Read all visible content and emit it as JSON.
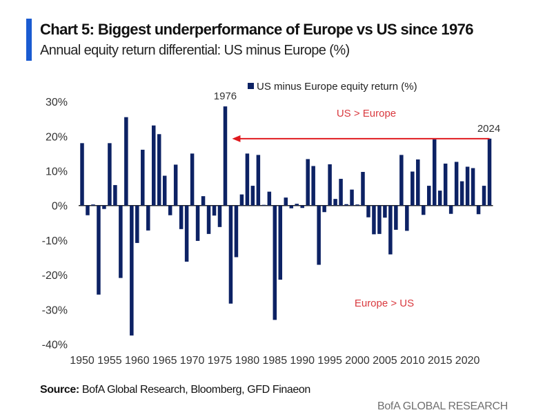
{
  "header": {
    "title": "Chart 5: Biggest underperformance of Europe vs US since 1976",
    "subtitle": "Annual equity return differential: US minus Europe (%)"
  },
  "footer": {
    "source_label": "Source:",
    "source_text": " BofA Global Research, Bloomberg, GFD Finaeon",
    "brand": "BofA GLOBAL RESEARCH"
  },
  "colors": {
    "bar": "#0d2264",
    "arrow": "#e0191e",
    "annotation_text": "#d9393e",
    "accent": "#1a5bd1"
  },
  "chart_data": {
    "type": "bar",
    "title": "Chart 5: Biggest underperformance of Europe vs US since 1976",
    "subtitle": "Annual equity return differential: US minus Europe (%)",
    "xlabel": "",
    "ylabel": "",
    "ylim": [
      -40,
      30
    ],
    "yticks": [
      30,
      20,
      10,
      0,
      -10,
      -20,
      -30,
      -40
    ],
    "ytick_labels": [
      "30%",
      "20%",
      "10%",
      "0%",
      "-10%",
      "-20%",
      "-30%",
      "-40%"
    ],
    "xtick_labels": [
      "1950",
      "1955",
      "1960",
      "1965",
      "1970",
      "1975",
      "1980",
      "1985",
      "1990",
      "1995",
      "2000",
      "2005",
      "2010",
      "2015",
      "2020"
    ],
    "grid": false,
    "legend": {
      "position": "top-center",
      "entries": [
        "US minus Europe equity return (%)"
      ]
    },
    "annotations": [
      {
        "text": "1976",
        "type": "bar-label",
        "year": 1976
      },
      {
        "text": "2024",
        "type": "bar-label",
        "year": 2024
      },
      {
        "text": "US > Europe",
        "type": "region-label"
      },
      {
        "text": "Europe > US",
        "type": "region-label"
      },
      {
        "type": "arrow",
        "from_year": 2024,
        "to_year": 1976,
        "level": 19.3
      }
    ],
    "series": [
      {
        "name": "US minus Europe equity return (%)",
        "x": [
          1950,
          1951,
          1952,
          1953,
          1954,
          1955,
          1956,
          1957,
          1958,
          1959,
          1960,
          1961,
          1962,
          1963,
          1964,
          1965,
          1966,
          1967,
          1968,
          1969,
          1970,
          1971,
          1972,
          1973,
          1974,
          1975,
          1976,
          1977,
          1978,
          1979,
          1980,
          1981,
          1982,
          1983,
          1984,
          1985,
          1986,
          1987,
          1988,
          1989,
          1990,
          1991,
          1992,
          1993,
          1994,
          1995,
          1996,
          1997,
          1998,
          1999,
          2000,
          2001,
          2002,
          2003,
          2004,
          2005,
          2006,
          2007,
          2008,
          2009,
          2010,
          2011,
          2012,
          2013,
          2014,
          2015,
          2016,
          2017,
          2018,
          2019,
          2020,
          2021,
          2022,
          2023,
          2024
        ],
        "values": [
          18.0,
          -2.8,
          0.3,
          -25.7,
          -1.0,
          18.0,
          5.9,
          -20.9,
          25.5,
          -37.5,
          -10.8,
          16.1,
          -7.2,
          23.1,
          20.6,
          8.6,
          -2.8,
          11.8,
          -6.8,
          -16.2,
          15.0,
          -10.2,
          2.7,
          -8.2,
          -2.9,
          -6.2,
          28.6,
          -28.3,
          -14.9,
          3.2,
          15.0,
          5.7,
          14.6,
          0.2,
          4.0,
          -33.0,
          -21.4,
          2.3,
          -0.8,
          0.5,
          -0.7,
          13.4,
          11.4,
          -17.1,
          -1.9,
          11.9,
          1.9,
          7.7,
          0.4,
          4.6,
          0.3,
          9.7,
          -3.4,
          -8.3,
          -8.2,
          -3.5,
          -14.1,
          -7.0,
          14.6,
          -7.3,
          9.8,
          13.3,
          -2.7,
          5.7,
          19.1,
          4.3,
          12.1,
          -2.4,
          12.6,
          7.0,
          11.2,
          10.8,
          -2.5,
          5.7,
          19.3
        ]
      }
    ]
  }
}
